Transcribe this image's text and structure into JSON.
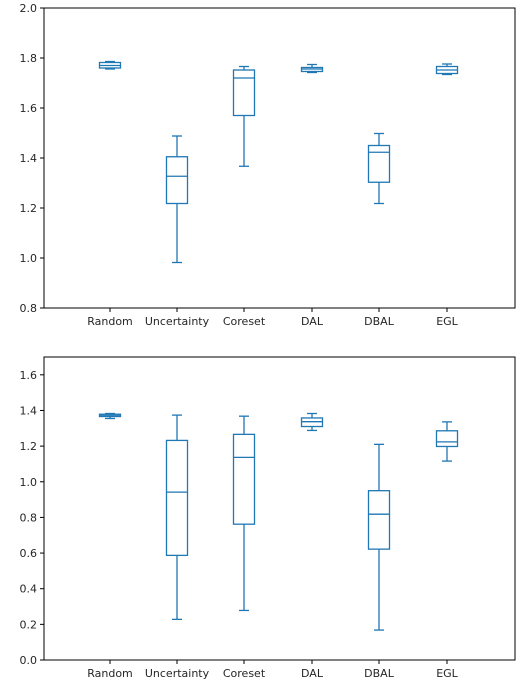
{
  "chart_data": [
    {
      "type": "box",
      "title": "",
      "xlabel": "",
      "ylabel": "",
      "ylim": [
        0.8,
        2.0
      ],
      "yticks": [
        "0.8",
        "1.0",
        "1.2",
        "1.4",
        "1.6",
        "1.8",
        "2.0"
      ],
      "categories": [
        "Random",
        "Uncertainty",
        "Coreset",
        "DAL",
        "DBAL",
        "EGL"
      ],
      "color": "#1f77b4",
      "boxes": [
        {
          "min": 1.756,
          "q1": 1.76,
          "median": 1.77,
          "q3": 1.782,
          "max": 1.786
        },
        {
          "min": 0.982,
          "q1": 1.218,
          "median": 1.327,
          "q3": 1.405,
          "max": 1.488
        },
        {
          "min": 1.367,
          "q1": 1.57,
          "median": 1.72,
          "q3": 1.752,
          "max": 1.766
        },
        {
          "min": 1.742,
          "q1": 1.746,
          "median": 1.756,
          "q3": 1.762,
          "max": 1.774
        },
        {
          "min": 1.218,
          "q1": 1.303,
          "median": 1.423,
          "q3": 1.45,
          "max": 1.498
        },
        {
          "min": 1.734,
          "q1": 1.738,
          "median": 1.752,
          "q3": 1.766,
          "max": 1.776
        }
      ],
      "grid": false
    },
    {
      "type": "box",
      "title": "",
      "xlabel": "",
      "ylabel": "",
      "ylim": [
        0.0,
        1.7
      ],
      "yticks": [
        "0.0",
        "0.2",
        "0.4",
        "0.6",
        "0.8",
        "1.0",
        "1.2",
        "1.4",
        "1.6"
      ],
      "categories": [
        "Random",
        "Uncertainty",
        "Coreset",
        "DAL",
        "DBAL",
        "EGL"
      ],
      "color": "#1f77b4",
      "boxes": [
        {
          "min": 1.355,
          "q1": 1.366,
          "median": 1.373,
          "q3": 1.379,
          "max": 1.383
        },
        {
          "min": 0.228,
          "q1": 0.587,
          "median": 0.942,
          "q3": 1.232,
          "max": 1.374
        },
        {
          "min": 0.278,
          "q1": 0.762,
          "median": 1.137,
          "q3": 1.266,
          "max": 1.368
        },
        {
          "min": 1.288,
          "q1": 1.31,
          "median": 1.337,
          "q3": 1.358,
          "max": 1.383
        },
        {
          "min": 0.168,
          "q1": 0.622,
          "median": 0.818,
          "q3": 0.95,
          "max": 1.21
        },
        {
          "min": 1.116,
          "q1": 1.198,
          "median": 1.224,
          "q3": 1.286,
          "max": 1.336
        }
      ],
      "grid": false
    }
  ]
}
